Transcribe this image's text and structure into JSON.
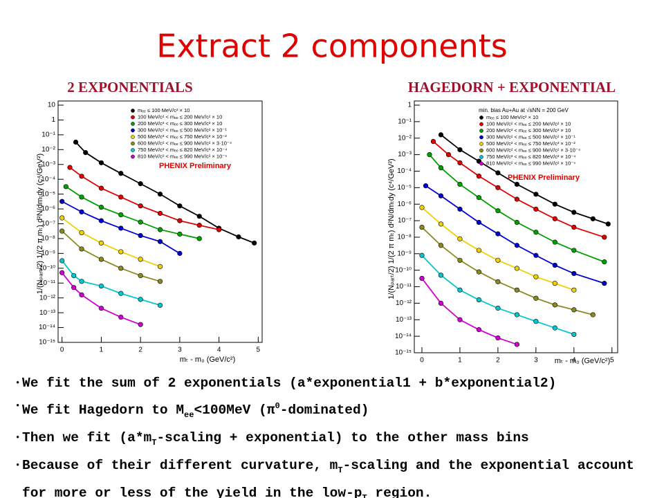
{
  "slide": {
    "title": "Extract 2 components",
    "bullets": [
      [
        "We fit the sum of 2 exponentials (a*exponential1 + b*exponential2)"
      ],
      [
        "We fit Hagedorn to M",
        {
          "sub": "ee"
        },
        "<100MeV (π",
        {
          "sup": "0"
        },
        "-dominated)"
      ],
      [
        "Then we fit (a*m",
        {
          "sub": "T"
        },
        "-scaling + exponential) to the other mass bins"
      ],
      [
        "Because of their different curvature, m",
        {
          "sub": "T"
        },
        "-scaling and the exponential account for more or less of the yield in the low-p",
        {
          "sub": "T"
        },
        " region."
      ]
    ]
  },
  "chart_data": [
    {
      "type": "scatter",
      "title": "2 EXPONENTIALS",
      "log_y": true,
      "xlabel": "mₜ - m₀ (GeV/c²)",
      "ylabel": "1/(Nₚₐᵣₜ/2) 1/(2 π mₜ) d²N/dmₜdy (c⁴/GeV²)",
      "annotations": [
        "PHENIX Preliminary"
      ],
      "xlim": [
        -0.1,
        5.1
      ],
      "xticks": [
        0,
        1,
        2,
        3,
        4,
        5
      ],
      "ylim": [
        1e-15,
        10
      ],
      "yticks": [
        10,
        1,
        {
          "value": 0.1,
          "label": "10⁻¹"
        },
        {
          "value": 0.01,
          "label": "10⁻²"
        },
        {
          "value": 0.001,
          "label": "10⁻³"
        },
        {
          "value": 0.0001,
          "label": "10⁻⁴"
        },
        {
          "value": 1e-05,
          "label": "10⁻⁵"
        },
        {
          "value": 1e-06,
          "label": "10⁻⁶"
        },
        {
          "value": 1e-07,
          "label": "10⁻⁷"
        },
        {
          "value": 1e-08,
          "label": "10⁻⁸"
        },
        {
          "value": 1e-09,
          "label": "10⁻⁹"
        },
        {
          "value": 1e-10,
          "label": "10⁻¹⁰"
        },
        {
          "value": 1e-11,
          "label": "10⁻¹¹"
        },
        {
          "value": 1e-12,
          "label": "10⁻¹²"
        },
        {
          "value": 1e-13,
          "label": "10⁻¹³"
        },
        {
          "value": 1e-14,
          "label": "10⁻¹⁴"
        },
        {
          "value": 1e-15,
          "label": "10⁻¹⁵"
        }
      ],
      "series": [
        {
          "name": "mₑₑ ≤ 100 MeV/c² × 10",
          "color": "#000000",
          "x": [
            0.35,
            0.6,
            1,
            1.5,
            2,
            2.5,
            3,
            3.5,
            4,
            4.5,
            4.9
          ],
          "values": [
            0.032,
            0.0063,
            0.0013,
            0.00025,
            5e-05,
            1e-05,
            1.6e-06,
            3.2e-07,
            5e-08,
            1.3e-08,
            5e-09
          ]
        },
        {
          "name": "100 MeV/c² < mₑₑ ≤ 200 MeV/c² × 10",
          "color": "#e00000",
          "x": [
            0.2,
            0.5,
            1,
            1.5,
            2,
            2.5,
            3,
            3.5,
            4
          ],
          "values": [
            0.00063,
            0.00016,
            2.5e-05,
            6.3e-06,
            1.6e-06,
            5e-07,
            1.6e-07,
            7.9e-08,
            4e-08
          ]
        },
        {
          "name": "200 MeV/c² < mₑₑ ≤ 300 MeV/c² × 10",
          "color": "#00a000",
          "x": [
            0.1,
            0.5,
            1,
            1.5,
            2,
            2.5,
            3,
            3.5
          ],
          "values": [
            3.2e-05,
            6.3e-06,
            1.3e-06,
            4e-07,
            1.3e-07,
            4e-08,
            2e-08,
            1e-08
          ]
        },
        {
          "name": "300 MeV/c² < mₑₑ ≤ 500 MeV/c² × 10⁻¹",
          "color": "#0000d0",
          "x": [
            0,
            0.5,
            1,
            1.5,
            2,
            2.5,
            3
          ],
          "values": [
            3.2e-06,
            6.3e-07,
            1.6e-07,
            5e-08,
            1.6e-08,
            6.3e-09,
            1e-09
          ]
        },
        {
          "name": "500 MeV/c² < mₑₑ ≤ 750 MeV/c² × 10⁻²",
          "color": "#f0d000",
          "x": [
            0,
            0.5,
            1,
            1.5,
            2,
            2.5
          ],
          "values": [
            2.5e-07,
            2.5e-08,
            5e-09,
            1.3e-09,
            4e-10,
            1.3e-10
          ]
        },
        {
          "name": "600 MeV/c² < mₑₑ ≤ 900 MeV/c² × 3·10⁻⁴",
          "color": "#8a8a20",
          "x": [
            0,
            0.5,
            1,
            1.5,
            2,
            2.5
          ],
          "values": [
            3.2e-08,
            2e-09,
            4e-10,
            1e-10,
            3.2e-11,
            1.3e-11
          ]
        },
        {
          "name": "750 MeV/c² < mₑₑ ≤ 820 MeV/c² × 10⁻⁴",
          "color": "#00c8d0",
          "x": [
            0,
            0.3,
            0.5,
            1,
            1.5,
            2,
            2.5
          ],
          "values": [
            3.2e-10,
            3.2e-11,
            1.3e-11,
            6.3e-12,
            2e-12,
            7.9e-13,
            3.2e-13
          ]
        },
        {
          "name": "810 MeV/c² < mₑₑ ≤ 990 MeV/c² × 10⁻⁵",
          "color": "#d000d0",
          "x": [
            0,
            0.3,
            0.5,
            1,
            1.5,
            2
          ],
          "values": [
            5e-11,
            5e-12,
            1.6e-12,
            2e-13,
            5e-14,
            1.6e-14
          ]
        }
      ]
    },
    {
      "type": "scatter",
      "title": "HAGEDORN + EXPONENTIAL",
      "log_y": true,
      "xlabel": "mₜ - m₀ (GeV/c²)",
      "ylabel": "1/(Nₚₐᵣₜ/2) 1/(2 π mₜ) d²N/dmₜdy (c⁴/GeV²)",
      "annotations": [
        "min. bias Au+Au at √sNN = 200 GeV",
        "PHENIX Preliminary"
      ],
      "xlim": [
        -0.2,
        5.15
      ],
      "xticks": [
        0,
        1,
        2,
        3,
        4,
        5
      ],
      "ylim": [
        1e-15,
        1
      ],
      "yticks": [
        1,
        {
          "value": 0.1,
          "label": "10⁻¹"
        },
        {
          "value": 0.01,
          "label": "10⁻²"
        },
        {
          "value": 0.001,
          "label": "10⁻³"
        },
        {
          "value": 0.0001,
          "label": "10⁻⁴"
        },
        {
          "value": 1e-05,
          "label": "10⁻⁵"
        },
        {
          "value": 1e-06,
          "label": "10⁻⁶"
        },
        {
          "value": 1e-07,
          "label": "10⁻⁷"
        },
        {
          "value": 1e-08,
          "label": "10⁻⁸"
        },
        {
          "value": 1e-09,
          "label": "10⁻⁹"
        },
        {
          "value": 1e-10,
          "label": "10⁻¹⁰"
        },
        {
          "value": 1e-11,
          "label": "10⁻¹¹"
        },
        {
          "value": 1e-12,
          "label": "10⁻¹²"
        },
        {
          "value": 1e-13,
          "label": "10⁻¹³"
        },
        {
          "value": 1e-14,
          "label": "10⁻¹⁴"
        },
        {
          "value": 1e-15,
          "label": "10⁻¹⁵"
        }
      ],
      "series": [
        {
          "name": "mₑₑ ≤ 100 MeV/c² × 10",
          "color": "#000000",
          "x": [
            0.5,
            1,
            1.5,
            2,
            2.5,
            3,
            3.5,
            4,
            4.5,
            4.9
          ],
          "values": [
            0.016,
            0.002,
            0.0004,
            7.9e-05,
            1.6e-05,
            4e-06,
            1e-06,
            3.2e-07,
            1.3e-07,
            6.3e-08
          ]
        },
        {
          "name": "100 MeV/c² < mₑₑ ≤ 200 MeV/c² × 10",
          "color": "#e00000",
          "x": [
            0.3,
            0.7,
            1,
            1.5,
            2,
            2.5,
            3,
            3.5,
            4,
            4.8
          ],
          "values": [
            0.0063,
            0.001,
            0.00032,
            5e-05,
            1e-05,
            2e-06,
            5e-07,
            1.3e-07,
            4e-08,
            1e-08
          ]
        },
        {
          "name": "200 MeV/c² < mₑₑ ≤ 300 MeV/c² × 10",
          "color": "#00a000",
          "x": [
            0.2,
            0.5,
            1,
            1.5,
            2,
            2.5,
            3,
            3.5,
            4,
            4.8
          ],
          "values": [
            0.001,
            0.00016,
            1.6e-05,
            2.5e-06,
            4e-07,
            7.9e-08,
            2e-08,
            5e-09,
            1.6e-09,
            3.2e-10
          ]
        },
        {
          "name": "300 MeV/c² < mₑₑ ≤ 500 MeV/c² × 10⁻¹",
          "color": "#0000d0",
          "x": [
            0.1,
            0.5,
            1,
            1.5,
            2,
            2.5,
            3,
            3.5,
            4,
            4.8
          ],
          "values": [
            1.3e-05,
            3.2e-06,
            5e-07,
            7.9e-08,
            1.6e-08,
            3.2e-09,
            7.9e-10,
            2e-10,
            6.3e-11,
            1.6e-11
          ]
        },
        {
          "name": "500 MeV/c² < mₑₑ ≤ 750 MeV/c² × 10⁻²",
          "color": "#f0d000",
          "x": [
            0,
            0.5,
            1,
            1.5,
            2,
            2.5,
            3,
            3.5,
            4
          ],
          "values": [
            6.3e-07,
            6.3e-08,
            7.9e-09,
            1.6e-09,
            4e-10,
            1.3e-10,
            4e-11,
            1.6e-11,
            6.3e-12
          ]
        },
        {
          "name": "600 MeV/c² < mₑₑ ≤ 900 MeV/c² × 3·10⁻⁴",
          "color": "#8a8a20",
          "x": [
            0,
            0.5,
            1,
            1.5,
            2,
            2.5,
            3,
            3.5,
            4,
            4.5
          ],
          "values": [
            4e-08,
            3.2e-09,
            4e-10,
            7.9e-11,
            2e-11,
            6.3e-12,
            2e-12,
            7.9e-13,
            4e-13,
            2e-13
          ]
        },
        {
          "name": "750 MeV/c² < mₑₑ ≤ 820 MeV/c² × 10⁻⁴",
          "color": "#00c8d0",
          "x": [
            0,
            0.5,
            1,
            1.5,
            2,
            2.5,
            3,
            3.5,
            4
          ],
          "values": [
            7.9e-10,
            5e-11,
            6.3e-12,
            1.6e-12,
            5e-13,
            2e-13,
            7.9e-14,
            3.2e-14,
            1.3e-14
          ]
        },
        {
          "name": "810 MeV/c² < mₑₑ ≤ 990 MeV/c² × 10⁻⁵",
          "color": "#d000d0",
          "x": [
            0,
            0.5,
            1,
            1.5,
            2,
            2.5
          ],
          "values": [
            3.2e-11,
            1e-12,
            1e-13,
            2.5e-14,
            7.9e-15,
            3.2e-15
          ]
        }
      ]
    }
  ]
}
